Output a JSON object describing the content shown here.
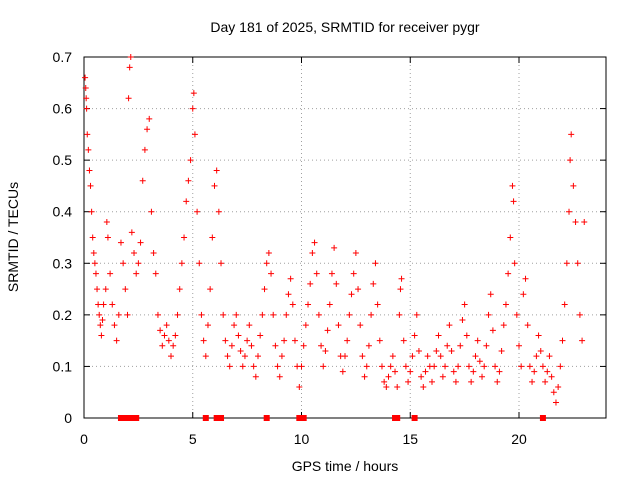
{
  "chart_data": {
    "type": "scatter",
    "title": "Day 181 of 2025, SRMTID for receiver pygr",
    "xlabel": "GPS time / hours",
    "ylabel": "SRMTID / TECUs",
    "xlim": [
      0,
      24
    ],
    "ylim": [
      0,
      0.7
    ],
    "xticks": [
      0,
      5,
      10,
      15,
      20
    ],
    "yticks": [
      0,
      0.1,
      0.2,
      0.3,
      0.4,
      0.5,
      0.6,
      0.7
    ],
    "xtick_labels": [
      "0",
      "5",
      "10",
      "15",
      "20"
    ],
    "ytick_labels": [
      "0",
      "0.1",
      "0.2",
      "0.3",
      "0.4",
      "0.5",
      "0.6",
      "0.7"
    ],
    "grid": true,
    "marker": "plus",
    "color": "#ff0000",
    "series": [
      {
        "name": "SRMTID",
        "points": [
          [
            0.05,
            0.66
          ],
          [
            0.08,
            0.64
          ],
          [
            0.1,
            0.62
          ],
          [
            0.12,
            0.6
          ],
          [
            0.15,
            0.55
          ],
          [
            0.2,
            0.52
          ],
          [
            0.25,
            0.48
          ],
          [
            0.3,
            0.45
          ],
          [
            0.35,
            0.4
          ],
          [
            0.4,
            0.35
          ],
          [
            0.45,
            0.32
          ],
          [
            0.5,
            0.3
          ],
          [
            0.55,
            0.28
          ],
          [
            0.6,
            0.25
          ],
          [
            0.65,
            0.22
          ],
          [
            0.7,
            0.2
          ],
          [
            0.75,
            0.18
          ],
          [
            0.8,
            0.16
          ],
          [
            0.85,
            0.19
          ],
          [
            0.9,
            0.22
          ],
          [
            1.0,
            0.25
          ],
          [
            1.05,
            0.38
          ],
          [
            1.1,
            0.35
          ],
          [
            1.2,
            0.28
          ],
          [
            1.3,
            0.22
          ],
          [
            1.4,
            0.18
          ],
          [
            1.5,
            0.15
          ],
          [
            1.6,
            0.2
          ],
          [
            1.7,
            0.34
          ],
          [
            1.8,
            0.3
          ],
          [
            1.9,
            0.25
          ],
          [
            2.0,
            0.2
          ],
          [
            2.05,
            0.62
          ],
          [
            2.1,
            0.68
          ],
          [
            2.15,
            0.7
          ],
          [
            2.2,
            0.36
          ],
          [
            2.3,
            0.32
          ],
          [
            2.4,
            0.28
          ],
          [
            2.5,
            0.3
          ],
          [
            2.6,
            0.34
          ],
          [
            2.7,
            0.46
          ],
          [
            2.8,
            0.52
          ],
          [
            2.9,
            0.56
          ],
          [
            3.0,
            0.58
          ],
          [
            3.1,
            0.4
          ],
          [
            3.2,
            0.32
          ],
          [
            3.3,
            0.28
          ],
          [
            3.4,
            0.2
          ],
          [
            3.5,
            0.17
          ],
          [
            3.6,
            0.14
          ],
          [
            3.7,
            0.16
          ],
          [
            3.8,
            0.18
          ],
          [
            3.9,
            0.15
          ],
          [
            4.0,
            0.12
          ],
          [
            4.1,
            0.14
          ],
          [
            4.2,
            0.16
          ],
          [
            4.3,
            0.2
          ],
          [
            4.4,
            0.25
          ],
          [
            4.5,
            0.3
          ],
          [
            4.6,
            0.35
          ],
          [
            4.7,
            0.42
          ],
          [
            4.8,
            0.46
          ],
          [
            4.9,
            0.5
          ],
          [
            5.0,
            0.6
          ],
          [
            5.05,
            0.63
          ],
          [
            5.1,
            0.55
          ],
          [
            5.2,
            0.4
          ],
          [
            5.3,
            0.3
          ],
          [
            5.4,
            0.2
          ],
          [
            5.5,
            0.15
          ],
          [
            5.6,
            0.12
          ],
          [
            5.7,
            0.18
          ],
          [
            5.8,
            0.25
          ],
          [
            5.9,
            0.35
          ],
          [
            6.0,
            0.45
          ],
          [
            6.1,
            0.48
          ],
          [
            6.2,
            0.4
          ],
          [
            6.3,
            0.3
          ],
          [
            6.4,
            0.2
          ],
          [
            6.5,
            0.15
          ],
          [
            6.6,
            0.12
          ],
          [
            6.7,
            0.1
          ],
          [
            6.8,
            0.14
          ],
          [
            6.9,
            0.18
          ],
          [
            7.0,
            0.2
          ],
          [
            7.1,
            0.16
          ],
          [
            7.2,
            0.13
          ],
          [
            7.3,
            0.1
          ],
          [
            7.4,
            0.12
          ],
          [
            7.5,
            0.15
          ],
          [
            7.6,
            0.18
          ],
          [
            7.7,
            0.14
          ],
          [
            7.8,
            0.1
          ],
          [
            7.9,
            0.08
          ],
          [
            8.0,
            0.12
          ],
          [
            8.1,
            0.16
          ],
          [
            8.2,
            0.2
          ],
          [
            8.3,
            0.25
          ],
          [
            8.4,
            0.3
          ],
          [
            8.5,
            0.32
          ],
          [
            8.6,
            0.28
          ],
          [
            8.7,
            0.2
          ],
          [
            8.8,
            0.14
          ],
          [
            8.9,
            0.1
          ],
          [
            9.0,
            0.08
          ],
          [
            9.1,
            0.12
          ],
          [
            9.2,
            0.15
          ],
          [
            9.3,
            0.2
          ],
          [
            9.4,
            0.24
          ],
          [
            9.5,
            0.27
          ],
          [
            9.6,
            0.22
          ],
          [
            9.7,
            0.15
          ],
          [
            9.8,
            0.1
          ],
          [
            9.9,
            0.06
          ],
          [
            10.0,
            0.1
          ],
          [
            10.1,
            0.14
          ],
          [
            10.2,
            0.18
          ],
          [
            10.3,
            0.22
          ],
          [
            10.4,
            0.26
          ],
          [
            10.5,
            0.32
          ],
          [
            10.6,
            0.34
          ],
          [
            10.7,
            0.28
          ],
          [
            10.8,
            0.2
          ],
          [
            10.9,
            0.14
          ],
          [
            11.0,
            0.1
          ],
          [
            11.1,
            0.13
          ],
          [
            11.2,
            0.17
          ],
          [
            11.3,
            0.22
          ],
          [
            11.4,
            0.28
          ],
          [
            11.5,
            0.33
          ],
          [
            11.6,
            0.26
          ],
          [
            11.7,
            0.18
          ],
          [
            11.8,
            0.12
          ],
          [
            11.9,
            0.09
          ],
          [
            12.0,
            0.12
          ],
          [
            12.1,
            0.15
          ],
          [
            12.2,
            0.2
          ],
          [
            12.3,
            0.24
          ],
          [
            12.4,
            0.28
          ],
          [
            12.5,
            0.32
          ],
          [
            12.6,
            0.25
          ],
          [
            12.7,
            0.18
          ],
          [
            12.8,
            0.12
          ],
          [
            12.9,
            0.08
          ],
          [
            13.0,
            0.1
          ],
          [
            13.1,
            0.14
          ],
          [
            13.2,
            0.2
          ],
          [
            13.3,
            0.26
          ],
          [
            13.4,
            0.3
          ],
          [
            13.5,
            0.22
          ],
          [
            13.6,
            0.15
          ],
          [
            13.7,
            0.1
          ],
          [
            13.8,
            0.07
          ],
          [
            13.9,
            0.06
          ],
          [
            14.0,
            0.08
          ],
          [
            14.1,
            0.1
          ],
          [
            14.2,
            0.12
          ],
          [
            14.3,
            0.09
          ],
          [
            14.4,
            0.06
          ],
          [
            14.5,
            0.2
          ],
          [
            14.55,
            0.25
          ],
          [
            14.6,
            0.27
          ],
          [
            14.7,
            0.15
          ],
          [
            14.8,
            0.1
          ],
          [
            14.9,
            0.07
          ],
          [
            15.0,
            0.09
          ],
          [
            15.1,
            0.12
          ],
          [
            15.2,
            0.16
          ],
          [
            15.3,
            0.2
          ],
          [
            15.4,
            0.13
          ],
          [
            15.5,
            0.08
          ],
          [
            15.6,
            0.06
          ],
          [
            15.7,
            0.09
          ],
          [
            15.8,
            0.12
          ],
          [
            15.9,
            0.1
          ],
          [
            16.0,
            0.07
          ],
          [
            16.1,
            0.1
          ],
          [
            16.2,
            0.13
          ],
          [
            16.3,
            0.16
          ],
          [
            16.4,
            0.12
          ],
          [
            16.5,
            0.08
          ],
          [
            16.6,
            0.1
          ],
          [
            16.7,
            0.14
          ],
          [
            16.8,
            0.18
          ],
          [
            16.9,
            0.13
          ],
          [
            17.0,
            0.09
          ],
          [
            17.1,
            0.07
          ],
          [
            17.2,
            0.1
          ],
          [
            17.3,
            0.14
          ],
          [
            17.4,
            0.19
          ],
          [
            17.5,
            0.22
          ],
          [
            17.6,
            0.16
          ],
          [
            17.7,
            0.1
          ],
          [
            17.8,
            0.07
          ],
          [
            17.9,
            0.09
          ],
          [
            18.0,
            0.12
          ],
          [
            18.1,
            0.15
          ],
          [
            18.2,
            0.11
          ],
          [
            18.3,
            0.08
          ],
          [
            18.4,
            0.1
          ],
          [
            18.5,
            0.14
          ],
          [
            18.6,
            0.2
          ],
          [
            18.7,
            0.24
          ],
          [
            18.8,
            0.17
          ],
          [
            18.9,
            0.1
          ],
          [
            19.0,
            0.07
          ],
          [
            19.1,
            0.09
          ],
          [
            19.2,
            0.13
          ],
          [
            19.3,
            0.18
          ],
          [
            19.4,
            0.22
          ],
          [
            19.5,
            0.28
          ],
          [
            19.6,
            0.35
          ],
          [
            19.7,
            0.45
          ],
          [
            19.75,
            0.42
          ],
          [
            19.8,
            0.3
          ],
          [
            19.9,
            0.2
          ],
          [
            20.0,
            0.14
          ],
          [
            20.1,
            0.1
          ],
          [
            20.2,
            0.24
          ],
          [
            20.3,
            0.27
          ],
          [
            20.4,
            0.18
          ],
          [
            20.5,
            0.1
          ],
          [
            20.6,
            0.07
          ],
          [
            20.7,
            0.09
          ],
          [
            20.8,
            0.12
          ],
          [
            20.9,
            0.16
          ],
          [
            21.0,
            0.13
          ],
          [
            21.1,
            0.1
          ],
          [
            21.2,
            0.07
          ],
          [
            21.3,
            0.09
          ],
          [
            21.4,
            0.12
          ],
          [
            21.5,
            0.08
          ],
          [
            21.6,
            0.05
          ],
          [
            21.7,
            0.03
          ],
          [
            21.8,
            0.06
          ],
          [
            21.9,
            0.1
          ],
          [
            22.0,
            0.15
          ],
          [
            22.1,
            0.22
          ],
          [
            22.2,
            0.3
          ],
          [
            22.3,
            0.4
          ],
          [
            22.35,
            0.5
          ],
          [
            22.4,
            0.55
          ],
          [
            22.5,
            0.45
          ],
          [
            22.6,
            0.38
          ],
          [
            22.7,
            0.3
          ],
          [
            22.8,
            0.2
          ],
          [
            22.9,
            0.15
          ],
          [
            23.0,
            0.38
          ]
        ]
      }
    ],
    "baseline_markers": [
      1.7,
      1.8,
      1.9,
      2.1,
      2.2,
      2.3,
      2.4,
      5.6,
      6.1,
      6.2,
      6.3,
      8.4,
      9.9,
      10.1,
      14.3,
      14.4,
      15.2,
      21.1
    ]
  }
}
